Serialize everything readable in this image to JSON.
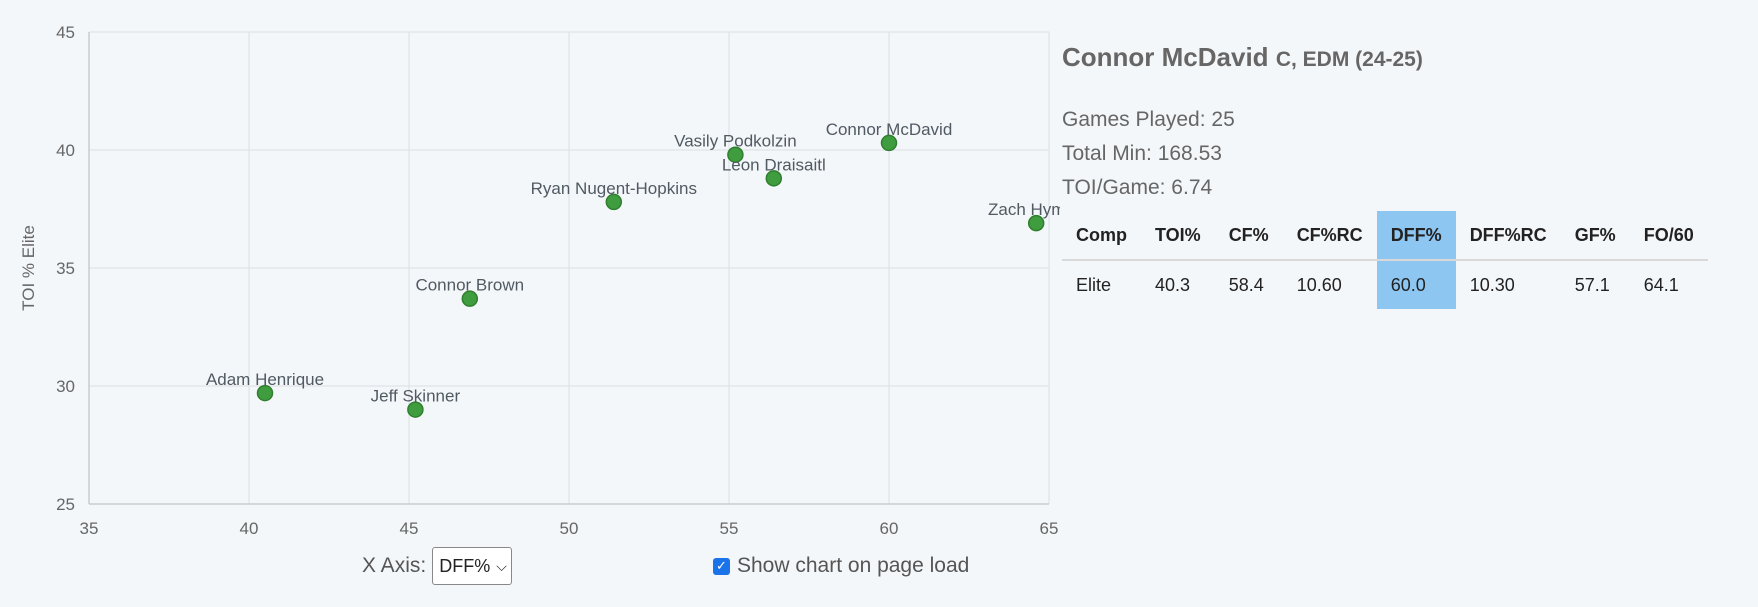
{
  "chart_data": {
    "type": "scatter",
    "xlabel": "",
    "ylabel": "TOI % Elite",
    "xlim": [
      35,
      65
    ],
    "ylim": [
      25,
      45
    ],
    "xticks": [
      "35",
      "40",
      "45",
      "50",
      "55",
      "60",
      "65"
    ],
    "yticks": [
      "25",
      "30",
      "35",
      "40",
      "45"
    ],
    "grid": true,
    "points": [
      {
        "label": "Adam Henrique",
        "x": 40.5,
        "y": 29.7
      },
      {
        "label": "Jeff Skinner",
        "x": 45.2,
        "y": 29.0
      },
      {
        "label": "Connor Brown",
        "x": 46.9,
        "y": 33.7
      },
      {
        "label": "Ryan Nugent-Hopkins",
        "x": 51.4,
        "y": 37.8
      },
      {
        "label": "Vasily Podkolzin",
        "x": 55.2,
        "y": 39.8
      },
      {
        "label": "Leon Draisaitl",
        "x": 56.4,
        "y": 38.8
      },
      {
        "label": "Connor McDavid",
        "x": 60.0,
        "y": 40.3
      },
      {
        "label": "Zach Hyman",
        "x": 64.6,
        "y": 36.9
      }
    ]
  },
  "controls": {
    "xaxis_label": "X Axis:",
    "xaxis_selected": "DFF%",
    "show_chart_label": "Show chart on page load",
    "show_chart_checked": true
  },
  "player": {
    "name": "Connor McDavid",
    "subtitle": "C, EDM (24-25)",
    "games_played": "Games Played: 25",
    "total_min": "Total Min: 168.53",
    "toi_game": "TOI/Game: 6.74"
  },
  "table": {
    "headers": [
      "Comp",
      "TOI%",
      "CF%",
      "CF%RC",
      "DFF%",
      "DFF%RC",
      "GF%",
      "FO/60"
    ],
    "highlight_col": 4,
    "highlight_color": "#8ec6f2",
    "rows": [
      [
        "Elite",
        "40.3",
        "58.4",
        "10.60",
        "60.0",
        "10.30",
        "57.1",
        "64.1"
      ]
    ]
  },
  "colors": {
    "point_fill": "#3f9d3f",
    "background": "#f4f7fa",
    "checkbox": "#1a73e8"
  }
}
